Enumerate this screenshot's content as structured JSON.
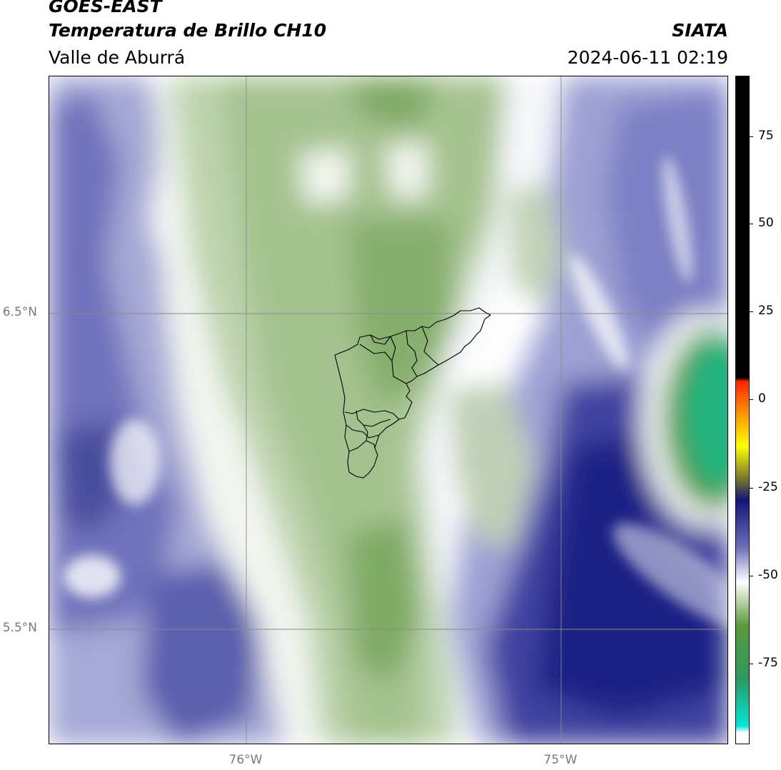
{
  "header": {
    "satellite": "GOES-EAST",
    "product": "Temperatura de Brillo CH10",
    "region": "Valle de Aburrá",
    "agency": "SIATA",
    "datetime": "2024-06-11 02:19"
  },
  "map": {
    "lat_labels": [
      "6.5°N",
      "5.5°N"
    ],
    "lon_labels": [
      "76°W",
      "75°W"
    ],
    "palette": {
      "deep_blue": "#1a1f7a",
      "blue": "#3a3f9a",
      "lavender": "#9a9cd0",
      "white": "#ffffff",
      "pale_green": "#d6e3cc",
      "green": "#9dbd88",
      "dark_green": "#5d9a45",
      "teal": "#22b480",
      "gridline": "#8a8a8a"
    }
  },
  "colorbar": {
    "tick_labels": [
      "75",
      "50",
      "25",
      "0",
      "-25",
      "-50",
      "-75"
    ],
    "range": [
      -93,
      93
    ],
    "gradient_stops": [
      {
        "value": 93,
        "color": "#000000"
      },
      {
        "value": 9,
        "color": "#000000"
      },
      {
        "value": 8,
        "color": "#ff2200"
      },
      {
        "value": 0,
        "color": "#ff8800"
      },
      {
        "value": -10,
        "color": "#ffff00"
      },
      {
        "value": -20,
        "color": "#6b6b30"
      },
      {
        "value": -25,
        "color": "#141478"
      },
      {
        "value": -38,
        "color": "#6a6cb8"
      },
      {
        "value": -48,
        "color": "#ffffff"
      },
      {
        "value": -60,
        "color": "#5c9a3c"
      },
      {
        "value": -75,
        "color": "#2a9a60"
      },
      {
        "value": -88,
        "color": "#00e6d8"
      },
      {
        "value": -90,
        "color": "#ffffff"
      },
      {
        "value": -93,
        "color": "#ffffff"
      }
    ]
  }
}
